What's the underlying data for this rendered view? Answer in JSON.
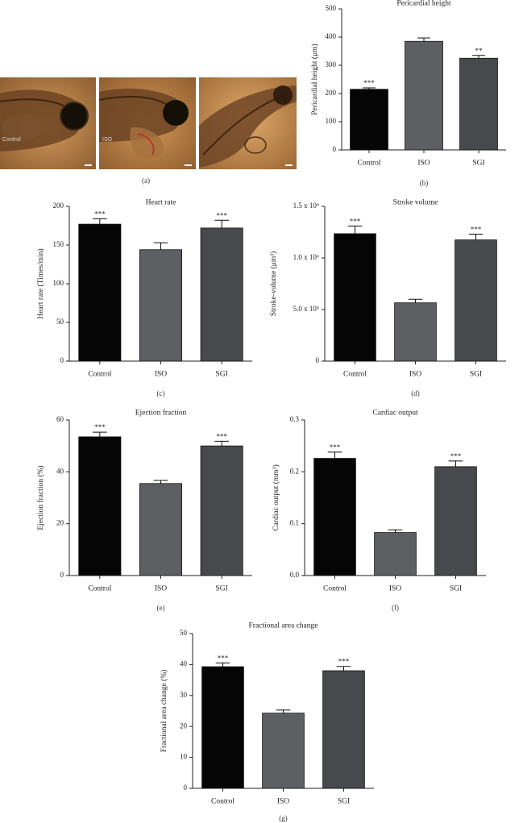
{
  "panel_a": {
    "images": [
      {
        "label": "Control"
      },
      {
        "label": "ISO"
      },
      {
        "label": ""
      }
    ],
    "caption": "(a)"
  },
  "chart_data": [
    {
      "type": "bar",
      "panel": "b",
      "caption": "(b)",
      "title": "Pericardial height",
      "ylabel": "Pericardial height (μm)",
      "categories": [
        "Control",
        "ISO",
        "SGI"
      ],
      "values": [
        215,
        385,
        325
      ],
      "errors": [
        5,
        12,
        10
      ],
      "sig": [
        "***",
        "",
        "**"
      ],
      "ylim": [
        0,
        500
      ],
      "yticks": [
        0,
        100,
        200,
        300,
        400,
        500
      ],
      "ytick_labels": [
        "0",
        "100",
        "200",
        "300",
        "400",
        "500"
      ]
    },
    {
      "type": "bar",
      "panel": "c",
      "caption": "(c)",
      "title": "Heart rate",
      "ylabel": "Heart rate (Times/min)",
      "categories": [
        "Control",
        "ISO",
        "SGI"
      ],
      "values": [
        177,
        144,
        172
      ],
      "errors": [
        7,
        9,
        10
      ],
      "sig": [
        "***",
        "",
        "***"
      ],
      "ylim": [
        0,
        200
      ],
      "yticks": [
        0,
        50,
        100,
        150,
        200
      ],
      "ytick_labels": [
        "0",
        "50",
        "100",
        "150",
        "200"
      ]
    },
    {
      "type": "bar",
      "panel": "d",
      "caption": "(d)",
      "title": "Stroke volume",
      "ylabel": "Stroke-volume (μm³)",
      "categories": [
        "Control",
        "ISO",
        "SGI"
      ],
      "values": [
        1235000,
        565000,
        1175000
      ],
      "errors": [
        75000,
        35000,
        55000
      ],
      "sig": [
        "***",
        "",
        "***"
      ],
      "ylim": [
        0,
        1500000
      ],
      "yticks": [
        0,
        500000,
        1000000,
        1500000
      ],
      "ytick_labels": [
        "0",
        "5.0 x 10⁵",
        "1.0 x 10⁶",
        "1.5 x 10⁶"
      ]
    },
    {
      "type": "bar",
      "panel": "e",
      "caption": "(e)",
      "title": "Ejection fraction",
      "ylabel": "Ejection fraction (%)",
      "categories": [
        "Control",
        "ISO",
        "SGI"
      ],
      "values": [
        53.5,
        35.5,
        50
      ],
      "errors": [
        1.8,
        1.2,
        1.8
      ],
      "sig": [
        "***",
        "",
        "***"
      ],
      "ylim": [
        0,
        60
      ],
      "yticks": [
        0,
        20,
        40,
        60
      ],
      "ytick_labels": [
        "0",
        "20",
        "40",
        "60"
      ]
    },
    {
      "type": "bar",
      "panel": "f",
      "caption": "(f)",
      "title": "Cardiac output",
      "ylabel": "Cardiac output (mm³)",
      "categories": [
        "Control",
        "ISO",
        "SGI"
      ],
      "values": [
        0.226,
        0.083,
        0.21
      ],
      "errors": [
        0.012,
        0.005,
        0.011
      ],
      "sig": [
        "***",
        "",
        "***"
      ],
      "ylim": [
        0,
        0.3
      ],
      "yticks": [
        0,
        0.1,
        0.2,
        0.3
      ],
      "ytick_labels": [
        "0.0",
        "0.1",
        "0.2",
        "0.3"
      ]
    },
    {
      "type": "bar",
      "panel": "g",
      "caption": "(g)",
      "title": "Fractional area change",
      "ylabel": "Fractional area change (%)",
      "categories": [
        "Control",
        "ISO",
        "SGI"
      ],
      "values": [
        39.3,
        24.3,
        38
      ],
      "errors": [
        1.2,
        1.0,
        1.4
      ],
      "sig": [
        "***",
        "",
        "***"
      ],
      "ylim": [
        0,
        50
      ],
      "yticks": [
        0,
        10,
        20,
        30,
        40,
        50
      ],
      "ytick_labels": [
        "0",
        "10",
        "20",
        "30",
        "40",
        "50"
      ]
    }
  ],
  "colors": {
    "control": "#050505",
    "iso": "#5e5f63",
    "sgi": "#48494d"
  }
}
